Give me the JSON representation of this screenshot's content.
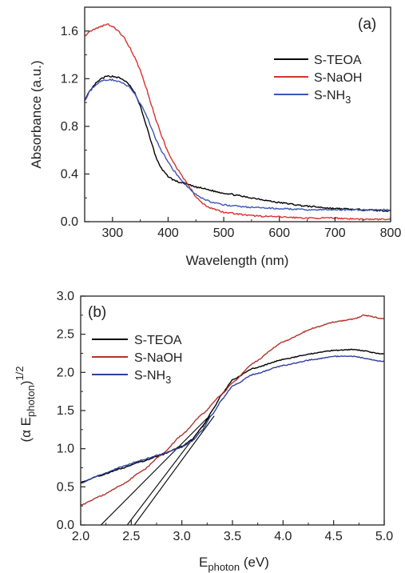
{
  "chart_data": [
    {
      "type": "line",
      "panel_label": "(a)",
      "xlabel": "Wavelength (nm)",
      "ylabel": "Absorbance (a.u.)",
      "xlim": [
        250,
        800
      ],
      "ylim": [
        0.0,
        1.8
      ],
      "xticks": [
        300,
        400,
        500,
        600,
        700,
        800
      ],
      "yticks": [
        0.0,
        0.4,
        0.8,
        1.2,
        1.6
      ],
      "ytick_labels": [
        "0.0",
        "0.4",
        "0.8",
        "1.2",
        "1.6"
      ],
      "grid": false,
      "legend_position": "top-right",
      "series": [
        {
          "name": "S-TEOA",
          "legend_label": [
            "S-TEOA"
          ],
          "color": "#000000",
          "x": [
            250,
            260,
            270,
            280,
            290,
            300,
            310,
            320,
            330,
            340,
            350,
            360,
            370,
            380,
            390,
            400,
            410,
            420,
            430,
            450,
            500,
            550,
            600,
            650,
            700,
            750,
            800
          ],
          "y": [
            1.02,
            1.1,
            1.16,
            1.2,
            1.22,
            1.22,
            1.21,
            1.19,
            1.15,
            1.08,
            0.97,
            0.82,
            0.66,
            0.52,
            0.43,
            0.38,
            0.35,
            0.33,
            0.32,
            0.29,
            0.24,
            0.2,
            0.16,
            0.13,
            0.11,
            0.1,
            0.09
          ]
        },
        {
          "name": "S-NaOH",
          "legend_label": [
            "S-NaOH"
          ],
          "color": "#d7322e",
          "x": [
            250,
            260,
            270,
            280,
            290,
            300,
            310,
            320,
            330,
            340,
            350,
            360,
            370,
            380,
            390,
            400,
            410,
            420,
            430,
            440,
            450,
            460,
            470,
            480,
            500,
            550,
            600,
            650,
            700,
            750,
            800
          ],
          "y": [
            1.56,
            1.6,
            1.62,
            1.64,
            1.66,
            1.64,
            1.6,
            1.55,
            1.47,
            1.38,
            1.27,
            1.13,
            0.98,
            0.83,
            0.7,
            0.58,
            0.49,
            0.42,
            0.35,
            0.28,
            0.21,
            0.16,
            0.13,
            0.11,
            0.08,
            0.05,
            0.04,
            0.03,
            0.03,
            0.02,
            0.02
          ]
        },
        {
          "name": "S-NH3",
          "legend_label": [
            "S-NH",
            "3"
          ],
          "color": "#3b55b5",
          "x": [
            250,
            260,
            270,
            280,
            290,
            300,
            310,
            320,
            330,
            340,
            350,
            360,
            370,
            380,
            390,
            400,
            410,
            420,
            430,
            440,
            450,
            460,
            470,
            480,
            500,
            550,
            600,
            650,
            700,
            750,
            800
          ],
          "y": [
            1.02,
            1.1,
            1.15,
            1.18,
            1.19,
            1.19,
            1.18,
            1.16,
            1.13,
            1.07,
            0.99,
            0.9,
            0.79,
            0.67,
            0.58,
            0.5,
            0.43,
            0.37,
            0.32,
            0.27,
            0.23,
            0.2,
            0.18,
            0.16,
            0.14,
            0.12,
            0.11,
            0.1,
            0.1,
            0.1,
            0.1
          ]
        }
      ]
    },
    {
      "type": "line",
      "panel_label": "(b)",
      "xlabel": [
        "E",
        "photon",
        " (eV)"
      ],
      "ylabel": [
        "(α E",
        "photon",
        ")",
        "1/2"
      ],
      "xlim": [
        2.0,
        5.0
      ],
      "ylim": [
        0.0,
        3.0
      ],
      "xticks": [
        2.0,
        2.5,
        3.0,
        3.5,
        4.0,
        4.5,
        5.0
      ],
      "xtick_labels": [
        "2.0",
        "2.5",
        "3.0",
        "3.5",
        "4.0",
        "4.5",
        "5.0"
      ],
      "yticks": [
        0.0,
        0.5,
        1.0,
        1.5,
        2.0,
        2.5,
        3.0
      ],
      "ytick_labels": [
        "0.0",
        "0.5",
        "1.0",
        "1.5",
        "2.0",
        "2.5",
        "3.0"
      ],
      "grid": false,
      "legend_position": "top-left",
      "series": [
        {
          "name": "S-TEOA",
          "legend_label": [
            "S-TEOA"
          ],
          "color": "#000000",
          "x": [
            2.0,
            2.2,
            2.4,
            2.6,
            2.8,
            3.0,
            3.1,
            3.2,
            3.3,
            3.4,
            3.5,
            3.7,
            4.0,
            4.3,
            4.5,
            4.7,
            5.0
          ],
          "y": [
            0.56,
            0.65,
            0.74,
            0.83,
            0.92,
            1.03,
            1.12,
            1.28,
            1.5,
            1.72,
            1.9,
            2.05,
            2.17,
            2.25,
            2.29,
            2.3,
            2.24
          ]
        },
        {
          "name": "S-NaOH",
          "legend_label": [
            "S-NaOH"
          ],
          "color": "#b3322c",
          "x": [
            2.0,
            2.2,
            2.4,
            2.6,
            2.8,
            3.0,
            3.2,
            3.4,
            3.5,
            3.7,
            4.0,
            4.3,
            4.5,
            4.7,
            4.8,
            5.0
          ],
          "y": [
            0.26,
            0.38,
            0.52,
            0.7,
            0.92,
            1.18,
            1.45,
            1.72,
            1.86,
            2.12,
            2.4,
            2.58,
            2.66,
            2.7,
            2.75,
            2.7
          ]
        },
        {
          "name": "S-NH3",
          "legend_label": [
            "S-NH",
            "3"
          ],
          "color": "#2e3f9c",
          "x": [
            2.0,
            2.2,
            2.4,
            2.6,
            2.8,
            3.0,
            3.1,
            3.2,
            3.3,
            3.4,
            3.5,
            3.7,
            4.0,
            4.3,
            4.5,
            4.7,
            5.0
          ],
          "y": [
            0.55,
            0.66,
            0.76,
            0.85,
            0.93,
            1.02,
            1.1,
            1.24,
            1.45,
            1.65,
            1.82,
            1.97,
            2.09,
            2.17,
            2.21,
            2.21,
            2.14
          ]
        }
      ],
      "tangent_lines": [
        {
          "color": "#000000",
          "x": [
            2.2,
            3.25
          ],
          "y": [
            0.0,
            1.4
          ]
        },
        {
          "color": "#000000",
          "x": [
            2.46,
            3.28
          ],
          "y": [
            0.0,
            1.43
          ]
        },
        {
          "color": "#000000",
          "x": [
            2.53,
            3.32
          ],
          "y": [
            0.0,
            1.43
          ]
        }
      ]
    }
  ]
}
